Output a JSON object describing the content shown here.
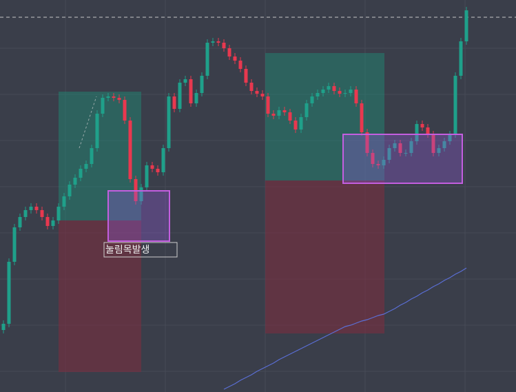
{
  "chart_data": {
    "type": "candlestick",
    "annotation": "눌림목발생",
    "up_color": "#1fa08a",
    "down_color": "#e8384f",
    "ylim": [
      0,
      569
    ],
    "open": [
      90,
      99,
      189,
      239,
      254,
      264,
      269,
      264,
      254,
      241,
      249,
      269,
      284,
      301,
      311,
      324,
      331,
      354,
      404,
      427,
      429,
      427,
      424,
      394,
      309,
      277,
      297,
      329,
      324,
      319,
      354,
      429,
      411,
      449,
      454,
      419,
      434,
      459,
      507,
      509,
      507,
      499,
      487,
      481,
      469,
      449,
      437,
      433,
      429,
      404,
      401,
      409,
      406,
      394,
      381,
      399,
      419,
      429,
      434,
      439,
      444,
      437,
      433,
      434,
      439,
      419,
      377,
      347,
      331,
      329,
      337,
      354,
      361,
      347,
      347,
      364,
      389,
      384,
      374,
      347,
      354,
      364,
      374,
      459,
      509
    ],
    "high": [
      104,
      194,
      244,
      259,
      269,
      274,
      274,
      269,
      259,
      254,
      274,
      289,
      306,
      316,
      329,
      336,
      359,
      409,
      432,
      434,
      434,
      432,
      429,
      399,
      314,
      302,
      334,
      334,
      329,
      359,
      434,
      434,
      454,
      459,
      459,
      439,
      464,
      512,
      514,
      514,
      512,
      504,
      492,
      486,
      474,
      454,
      442,
      438,
      434,
      409,
      414,
      414,
      411,
      399,
      404,
      424,
      434,
      439,
      444,
      449,
      449,
      442,
      439,
      444,
      444,
      424,
      382,
      352,
      336,
      342,
      359,
      366,
      366,
      352,
      369,
      394,
      394,
      389,
      379,
      359,
      369,
      379,
      464,
      514,
      559
    ],
    "low": [
      85,
      94,
      184,
      234,
      249,
      259,
      259,
      249,
      236,
      236,
      244,
      264,
      279,
      296,
      306,
      319,
      326,
      349,
      399,
      422,
      422,
      419,
      389,
      304,
      272,
      272,
      292,
      319,
      314,
      314,
      349,
      406,
      406,
      444,
      414,
      414,
      429,
      454,
      502,
      502,
      494,
      482,
      476,
      464,
      444,
      432,
      428,
      424,
      399,
      396,
      396,
      401,
      389,
      376,
      376,
      394,
      414,
      424,
      429,
      434,
      432,
      428,
      428,
      429,
      414,
      372,
      342,
      326,
      324,
      324,
      332,
      349,
      342,
      342,
      342,
      359,
      379,
      369,
      342,
      342,
      349,
      359,
      369,
      454,
      504
    ],
    "close": [
      99,
      189,
      239,
      254,
      264,
      269,
      264,
      254,
      241,
      249,
      269,
      284,
      301,
      311,
      324,
      331,
      354,
      404,
      427,
      429,
      427,
      424,
      394,
      309,
      277,
      297,
      329,
      324,
      319,
      354,
      429,
      411,
      449,
      454,
      419,
      434,
      459,
      507,
      509,
      507,
      499,
      487,
      481,
      469,
      449,
      437,
      433,
      429,
      404,
      401,
      409,
      406,
      394,
      381,
      399,
      419,
      429,
      434,
      439,
      444,
      437,
      433,
      434,
      439,
      419,
      377,
      347,
      331,
      329,
      337,
      354,
      361,
      347,
      347,
      364,
      389,
      384,
      374,
      347,
      354,
      364,
      374,
      459,
      509,
      554
    ],
    "ma_color": "#5b6fd6",
    "ma": [
      null,
      null,
      null,
      null,
      null,
      null,
      null,
      null,
      null,
      null,
      null,
      null,
      null,
      null,
      null,
      null,
      null,
      null,
      null,
      null,
      null,
      null,
      null,
      null,
      null,
      null,
      null,
      null,
      null,
      null,
      null,
      null,
      null,
      null,
      null,
      null,
      null,
      null,
      null,
      null,
      4,
      8,
      12,
      17,
      21,
      25,
      30,
      34,
      38,
      42,
      47,
      51,
      55,
      59,
      63,
      67,
      71,
      75,
      79,
      83,
      87,
      91,
      95,
      97,
      100,
      103,
      105,
      108,
      111,
      113,
      117,
      121,
      126,
      130,
      135,
      139,
      144,
      148,
      153,
      157,
      162,
      166,
      171,
      175,
      180
    ]
  }
}
